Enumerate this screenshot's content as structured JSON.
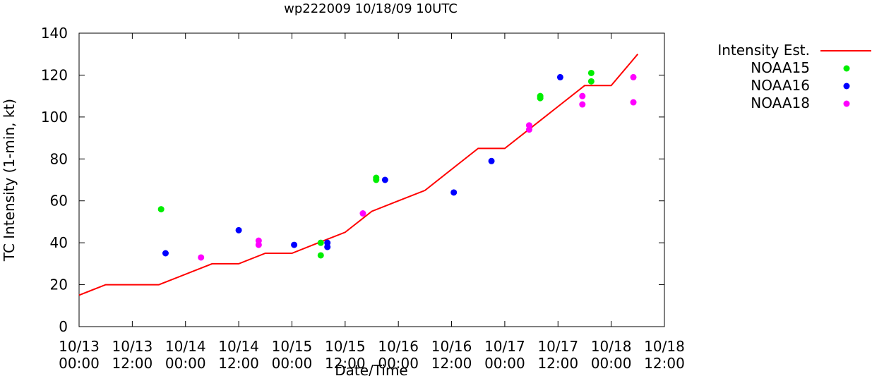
{
  "chart_data": {
    "type": "line",
    "title": "wp222009 10/18/09 10UTC",
    "xlabel": "Date/Time",
    "ylabel": "TC Intensity (1-min, kt)",
    "x_unit": "hours since 10/13 00:00",
    "xlim": [
      0,
      132
    ],
    "ylim": [
      0,
      140
    ],
    "yticks": [
      0,
      20,
      40,
      60,
      80,
      100,
      120,
      140
    ],
    "xticks": [
      {
        "x": 0,
        "line1": "10/13",
        "line2": "00:00"
      },
      {
        "x": 12,
        "line1": "10/13",
        "line2": "12:00"
      },
      {
        "x": 24,
        "line1": "10/14",
        "line2": "00:00"
      },
      {
        "x": 36,
        "line1": "10/14",
        "line2": "12:00"
      },
      {
        "x": 48,
        "line1": "10/15",
        "line2": "00:00"
      },
      {
        "x": 60,
        "line1": "10/15",
        "line2": "12:00"
      },
      {
        "x": 72,
        "line1": "10/16",
        "line2": "00:00"
      },
      {
        "x": 84,
        "line1": "10/16",
        "line2": "12:00"
      },
      {
        "x": 96,
        "line1": "10/17",
        "line2": "00:00"
      },
      {
        "x": 108,
        "line1": "10/17",
        "line2": "12:00"
      },
      {
        "x": 120,
        "line1": "10/18",
        "line2": "00:00"
      },
      {
        "x": 132,
        "line1": "10/18",
        "line2": "12:00"
      }
    ],
    "grid": false,
    "legend_position": "right",
    "series": [
      {
        "name": "Intensity Est.",
        "kind": "line",
        "color": "#ff0000",
        "points": [
          [
            0,
            15
          ],
          [
            6,
            20
          ],
          [
            18,
            20
          ],
          [
            30,
            30
          ],
          [
            36,
            30
          ],
          [
            42,
            35
          ],
          [
            48,
            35
          ],
          [
            54,
            40
          ],
          [
            60,
            45
          ],
          [
            66,
            55
          ],
          [
            72,
            60
          ],
          [
            78,
            65
          ],
          [
            84,
            75
          ],
          [
            90,
            85
          ],
          [
            96,
            85
          ],
          [
            102,
            95
          ],
          [
            108,
            105
          ],
          [
            114,
            115
          ],
          [
            120,
            115
          ],
          [
            126,
            130
          ]
        ]
      },
      {
        "name": "NOAA15",
        "kind": "points",
        "color": "#00ee00",
        "points": [
          [
            18.5,
            56
          ],
          [
            54.5,
            40
          ],
          [
            54.5,
            34
          ],
          [
            67,
            71
          ],
          [
            67,
            70
          ],
          [
            104,
            110
          ],
          [
            104,
            109
          ],
          [
            115.5,
            121
          ],
          [
            115.5,
            117
          ]
        ]
      },
      {
        "name": "NOAA16",
        "kind": "points",
        "color": "#0000ff",
        "points": [
          [
            19.5,
            35
          ],
          [
            36,
            46
          ],
          [
            48.5,
            39
          ],
          [
            56,
            40
          ],
          [
            56,
            38
          ],
          [
            69,
            70
          ],
          [
            84.5,
            64
          ],
          [
            93,
            79
          ],
          [
            108.5,
            119
          ]
        ]
      },
      {
        "name": "NOAA18",
        "kind": "points",
        "color": "#ff00ff",
        "points": [
          [
            27.5,
            33
          ],
          [
            40.5,
            41
          ],
          [
            40.5,
            39
          ],
          [
            64,
            54
          ],
          [
            101.5,
            96
          ],
          [
            101.5,
            94
          ],
          [
            113.5,
            110
          ],
          [
            113.5,
            106
          ],
          [
            125,
            119
          ],
          [
            125,
            107
          ]
        ]
      }
    ]
  }
}
